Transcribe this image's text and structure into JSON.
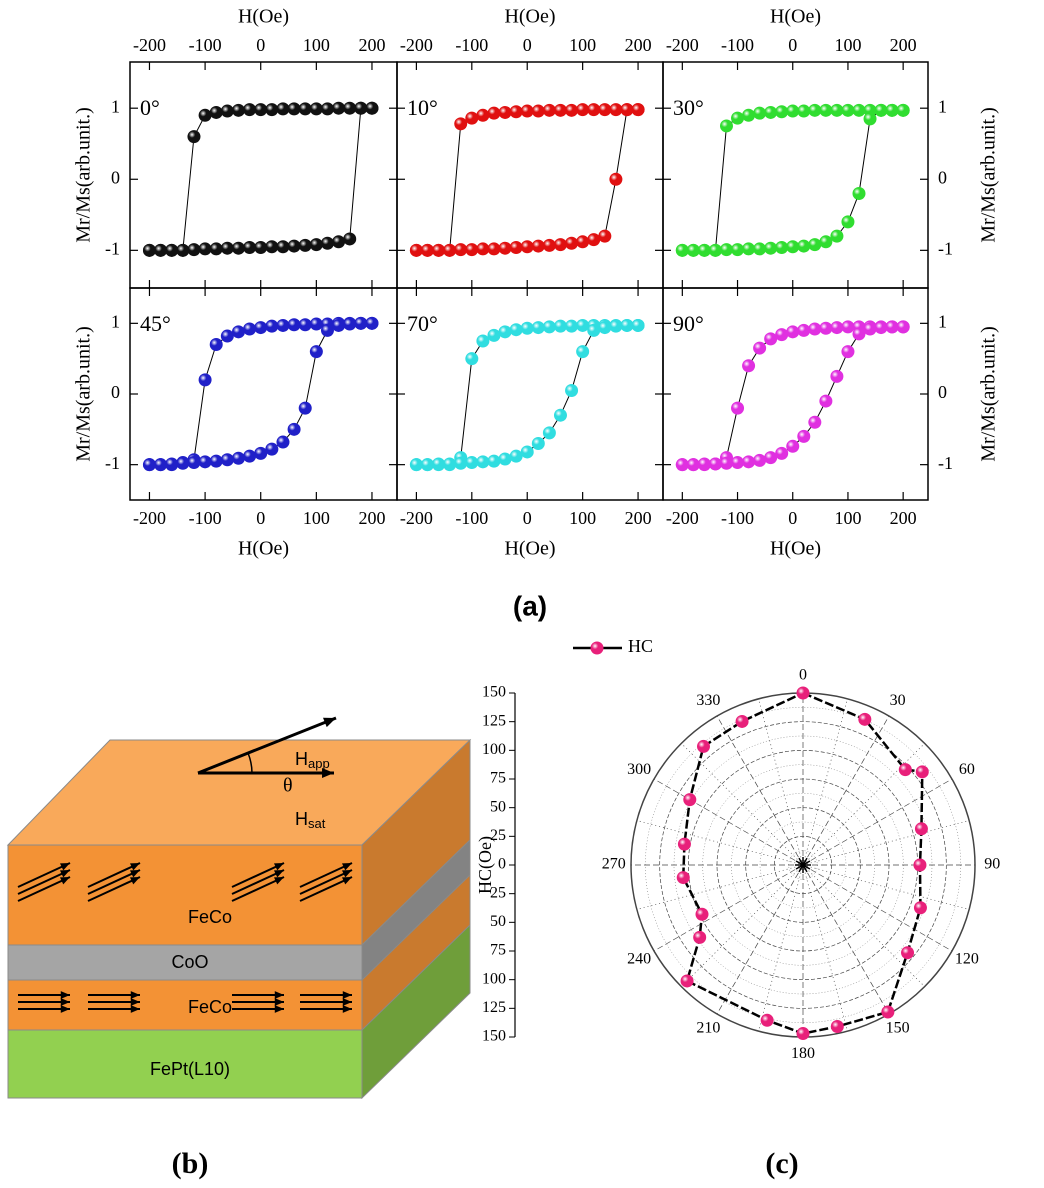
{
  "chart_data": [
    {
      "type": "line",
      "annotation": "0°",
      "xlabel": "H(Oe)",
      "ylabel": "Mr/Ms(arb.unit.)",
      "x": [
        -200,
        -180,
        -160,
        -140,
        -120,
        -100,
        -80,
        -60,
        -40,
        -20,
        0,
        20,
        40,
        60,
        80,
        100,
        120,
        140,
        160,
        180,
        200
      ],
      "series": [
        {
          "color": "#111111",
          "values": [
            -1,
            -1,
            -1,
            -1,
            0.6,
            0.9,
            0.94,
            0.96,
            0.97,
            0.98,
            0.98,
            0.98,
            0.99,
            0.99,
            0.99,
            0.99,
            0.99,
            1,
            1,
            1,
            1
          ]
        },
        {
          "color": "#111111",
          "values": [
            -1,
            -1,
            -1,
            -1,
            -0.99,
            -0.98,
            -0.98,
            -0.97,
            -0.97,
            -0.96,
            -0.96,
            -0.95,
            -0.95,
            -0.94,
            -0.93,
            -0.92,
            -0.9,
            -0.88,
            -0.84,
            1,
            1
          ]
        }
      ],
      "xlim": [
        -235,
        245
      ],
      "ylim": [
        -1.53,
        1.65
      ],
      "xticks": [
        -200,
        -100,
        0,
        100,
        200
      ],
      "yticks": [
        -1,
        0,
        1
      ]
    },
    {
      "type": "line",
      "annotation": "10°",
      "xlabel": "H(Oe)",
      "x": [
        -200,
        -180,
        -160,
        -140,
        -120,
        -100,
        -80,
        -60,
        -40,
        -20,
        0,
        20,
        40,
        60,
        80,
        100,
        120,
        140,
        160,
        180,
        200
      ],
      "series": [
        {
          "color": "#e01010",
          "values": [
            -1,
            -1,
            -1,
            -1,
            0.78,
            0.86,
            0.9,
            0.93,
            0.94,
            0.95,
            0.96,
            0.96,
            0.97,
            0.97,
            0.97,
            0.98,
            0.98,
            0.98,
            0.98,
            0.98,
            0.98
          ]
        },
        {
          "color": "#e01010",
          "values": [
            -1,
            -1,
            -1,
            -1,
            -0.99,
            -0.99,
            -0.98,
            -0.98,
            -0.97,
            -0.96,
            -0.95,
            -0.94,
            -0.93,
            -0.92,
            -0.9,
            -0.88,
            -0.85,
            -0.8,
            0,
            0.98,
            0.98
          ]
        }
      ],
      "xlim": [
        -235,
        245
      ],
      "ylim": [
        -1.53,
        1.65
      ],
      "xticks": [
        -200,
        -100,
        0,
        100,
        200
      ],
      "yticks": [
        -1,
        0,
        1
      ]
    },
    {
      "type": "line",
      "annotation": "30°",
      "xlabel": "H(Oe)",
      "ylabel": "Mr/Ms(arb.unit.)",
      "x": [
        -200,
        -180,
        -160,
        -140,
        -120,
        -100,
        -80,
        -60,
        -40,
        -20,
        0,
        20,
        40,
        60,
        80,
        100,
        120,
        140,
        160,
        180,
        200
      ],
      "series": [
        {
          "color": "#30dd30",
          "values": [
            -1,
            -1,
            -1,
            -1,
            0.75,
            0.86,
            0.9,
            0.93,
            0.94,
            0.95,
            0.96,
            0.96,
            0.97,
            0.97,
            0.97,
            0.97,
            0.97,
            0.97,
            0.97,
            0.97,
            0.97
          ]
        },
        {
          "color": "#30dd30",
          "values": [
            -1,
            -1,
            -1,
            -1,
            -0.99,
            -0.99,
            -0.98,
            -0.98,
            -0.97,
            -0.96,
            -0.95,
            -0.94,
            -0.92,
            -0.88,
            -0.8,
            -0.6,
            -0.2,
            0.85,
            0.97,
            0.97,
            0.97
          ]
        }
      ],
      "xlim": [
        -235,
        245
      ],
      "ylim": [
        -1.53,
        1.65
      ],
      "xticks": [
        -200,
        -100,
        0,
        100,
        200
      ],
      "yticks": [
        -1,
        0,
        1
      ]
    },
    {
      "type": "line",
      "annotation": "45°",
      "xlabel": "H(Oe)",
      "ylabel": "Mr/Ms(arb.unit.)",
      "x": [
        -200,
        -180,
        -160,
        -140,
        -120,
        -100,
        -80,
        -60,
        -40,
        -20,
        0,
        20,
        40,
        60,
        80,
        100,
        120,
        140,
        160,
        180,
        200
      ],
      "series": [
        {
          "color": "#2020c8",
          "values": [
            -1,
            -1,
            -1,
            -0.97,
            -0.93,
            0.2,
            0.7,
            0.82,
            0.88,
            0.92,
            0.94,
            0.96,
            0.97,
            0.98,
            0.98,
            0.99,
            0.99,
            1,
            1,
            1,
            1
          ]
        },
        {
          "color": "#2020c8",
          "values": [
            -1,
            -1,
            -0.99,
            -0.98,
            -0.97,
            -0.96,
            -0.95,
            -0.93,
            -0.91,
            -0.88,
            -0.84,
            -0.78,
            -0.68,
            -0.5,
            -0.2,
            0.6,
            0.9,
            0.97,
            0.99,
            1,
            1
          ]
        }
      ],
      "xlim": [
        -235,
        245
      ],
      "ylim": [
        -1.5,
        1.5
      ],
      "xticks": [
        -200,
        -100,
        0,
        100,
        200
      ],
      "yticks": [
        -1,
        0,
        1
      ]
    },
    {
      "type": "line",
      "annotation": "70°",
      "xlabel": "H(Oe)",
      "x": [
        -200,
        -180,
        -160,
        -140,
        -120,
        -100,
        -80,
        -60,
        -40,
        -20,
        0,
        20,
        40,
        60,
        80,
        100,
        120,
        140,
        160,
        180,
        200
      ],
      "series": [
        {
          "color": "#30dde0",
          "values": [
            -1,
            -1,
            -1,
            -1,
            -0.9,
            0.5,
            0.75,
            0.83,
            0.88,
            0.91,
            0.93,
            0.94,
            0.95,
            0.96,
            0.96,
            0.97,
            0.97,
            0.97,
            0.97,
            0.97,
            0.97
          ]
        },
        {
          "color": "#30dde0",
          "values": [
            -1,
            -1,
            -0.99,
            -0.99,
            -0.98,
            -0.97,
            -0.96,
            -0.95,
            -0.92,
            -0.88,
            -0.82,
            -0.7,
            -0.55,
            -0.3,
            0.05,
            0.6,
            0.9,
            0.94,
            0.96,
            0.97,
            0.97
          ]
        }
      ],
      "xlim": [
        -235,
        245
      ],
      "ylim": [
        -1.5,
        1.5
      ],
      "xticks": [
        -200,
        -100,
        0,
        100,
        200
      ],
      "yticks": [
        -1,
        0,
        1
      ]
    },
    {
      "type": "line",
      "annotation": "90°",
      "xlabel": "H(Oe)",
      "ylabel": "Mr/Ms(arb.unit.)",
      "x": [
        -200,
        -180,
        -160,
        -140,
        -120,
        -100,
        -80,
        -60,
        -40,
        -20,
        0,
        20,
        40,
        60,
        80,
        100,
        120,
        140,
        160,
        180,
        200
      ],
      "series": [
        {
          "color": "#e030e0",
          "values": [
            -1,
            -1,
            -1,
            -0.99,
            -0.9,
            -0.2,
            0.4,
            0.65,
            0.78,
            0.84,
            0.88,
            0.9,
            0.92,
            0.93,
            0.94,
            0.95,
            0.95,
            0.95,
            0.95,
            0.95,
            0.95
          ]
        },
        {
          "color": "#e030e0",
          "values": [
            -1,
            -1,
            -0.99,
            -0.99,
            -0.98,
            -0.97,
            -0.96,
            -0.94,
            -0.9,
            -0.84,
            -0.74,
            -0.6,
            -0.4,
            -0.1,
            0.25,
            0.6,
            0.85,
            0.92,
            0.94,
            0.95,
            0.95
          ]
        }
      ],
      "xlim": [
        -235,
        245
      ],
      "ylim": [
        -1.5,
        1.5
      ],
      "xticks": [
        -200,
        -100,
        0,
        100,
        200
      ],
      "yticks": [
        -1,
        0,
        1
      ]
    },
    {
      "type": "polar",
      "ylabel": "HC(Oe)",
      "theta": [
        0,
        23,
        47,
        52,
        73,
        90,
        110,
        130,
        150,
        168,
        180,
        193,
        225,
        235,
        244,
        264,
        280,
        300,
        320,
        337
      ],
      "series": [
        {
          "name": "HC",
          "color": "#e8207a",
          "values": [
            150,
            138,
            122,
            132,
            108,
            102,
            109,
            119,
            148,
            144,
            147,
            139,
            143,
            110,
            98,
            105,
            105,
            114,
            135,
            136
          ]
        }
      ],
      "rlim": [
        0,
        150
      ],
      "rticks": [
        0,
        25,
        50,
        75,
        100,
        125,
        150
      ],
      "thetaticks": [
        0,
        30,
        60,
        90,
        120,
        150,
        180,
        210,
        240,
        270,
        300,
        330
      ]
    }
  ],
  "diagram": {
    "field_app": [
      "H",
      "app"
    ],
    "angle": "θ",
    "field_sat": [
      "H",
      "sat"
    ],
    "layers": [
      "FeCo",
      "CoO",
      "FeCo",
      "FePt(L10)"
    ]
  },
  "captions": [
    "(a)",
    "(b)",
    "(c)"
  ]
}
